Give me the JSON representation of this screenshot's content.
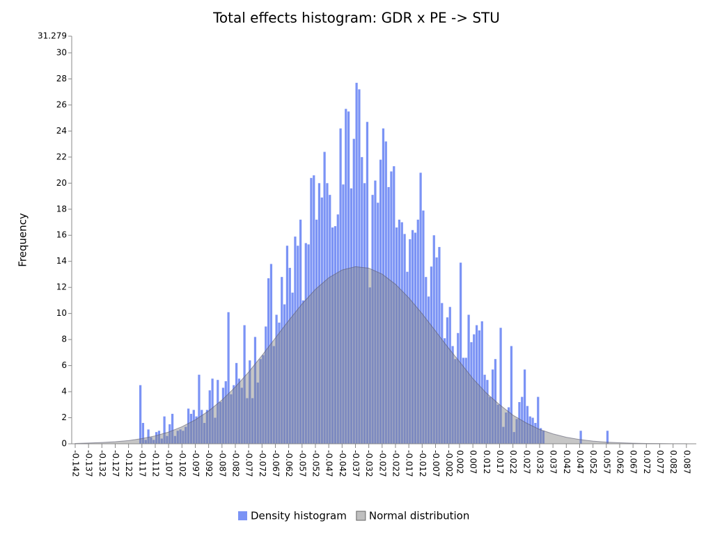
{
  "chart_data": {
    "type": "histogram",
    "title": "Total effects histogram: GDR x PE -> STU",
    "y_label": "Frequency",
    "xlim": [
      -0.1433,
      0.0907
    ],
    "ylim": [
      0,
      31.279
    ],
    "yticks": [
      0,
      2,
      4,
      6,
      8,
      10,
      12,
      14,
      16,
      18,
      20,
      22,
      24,
      26,
      28,
      30,
      31.279
    ],
    "xticks": [
      -0.142,
      -0.137,
      -0.132,
      -0.127,
      -0.122,
      -0.117,
      -0.112,
      -0.107,
      -0.102,
      -0.097,
      -0.092,
      -0.087,
      -0.082,
      -0.077,
      -0.072,
      -0.067,
      -0.062,
      -0.057,
      -0.052,
      -0.047,
      -0.042,
      -0.037,
      -0.032,
      -0.027,
      -0.022,
      -0.017,
      -0.012,
      -0.007,
      -0.002,
      0.002,
      0.007,
      0.012,
      0.017,
      0.022,
      0.027,
      0.032,
      0.037,
      0.042,
      0.047,
      0.052,
      0.057,
      0.062,
      0.067,
      0.072,
      0.077,
      0.082,
      0.087
    ],
    "bins": [
      -0.118,
      -0.117,
      -0.116,
      -0.115,
      -0.114,
      -0.113,
      -0.112,
      -0.111,
      -0.11,
      -0.109,
      -0.108,
      -0.107,
      -0.106,
      -0.105,
      -0.104,
      -0.103,
      -0.102,
      -0.101,
      -0.1,
      -0.099,
      -0.098,
      -0.097,
      -0.096,
      -0.095,
      -0.094,
      -0.093,
      -0.092,
      -0.091,
      -0.09,
      -0.089,
      -0.088,
      -0.087,
      -0.086,
      -0.085,
      -0.084,
      -0.083,
      -0.082,
      -0.081,
      -0.08,
      -0.079,
      -0.078,
      -0.077,
      -0.076,
      -0.075,
      -0.074,
      -0.073,
      -0.072,
      -0.071,
      -0.07,
      -0.069,
      -0.068,
      -0.067,
      -0.066,
      -0.065,
      -0.064,
      -0.063,
      -0.062,
      -0.061,
      -0.06,
      -0.059,
      -0.058,
      -0.057,
      -0.056,
      -0.055,
      -0.054,
      -0.053,
      -0.052,
      -0.051,
      -0.05,
      -0.049,
      -0.048,
      -0.047,
      -0.046,
      -0.045,
      -0.044,
      -0.043,
      -0.042,
      -0.041,
      -0.04,
      -0.039,
      -0.038,
      -0.037,
      -0.036,
      -0.035,
      -0.034,
      -0.033,
      -0.032,
      -0.031,
      -0.03,
      -0.029,
      -0.028,
      -0.027,
      -0.026,
      -0.025,
      -0.024,
      -0.023,
      -0.022,
      -0.021,
      -0.02,
      -0.019,
      -0.018,
      -0.017,
      -0.016,
      -0.015,
      -0.014,
      -0.013,
      -0.012,
      -0.011,
      -0.01,
      -0.009,
      -0.008,
      -0.007,
      -0.006,
      -0.005,
      -0.004,
      -0.003,
      -0.002,
      -0.001,
      0,
      0.001,
      0.002,
      0.003,
      0.004,
      0.005,
      0.006,
      0.007,
      0.008,
      0.009,
      0.01,
      0.011,
      0.012,
      0.013,
      0.014,
      0.015,
      0.016,
      0.017,
      0.018,
      0.019,
      0.02,
      0.021,
      0.022,
      0.023,
      0.024,
      0.025,
      0.026,
      0.027,
      0.028,
      0.029,
      0.03,
      0.031,
      0.032,
      0.033,
      0.034,
      0.035,
      0.036,
      0.037,
      0.038,
      0.039,
      0.04,
      0.041,
      0.042,
      0.043,
      0.044,
      0.045,
      0.046,
      0.047,
      0.048,
      0.049,
      0.05,
      0.051,
      0.052,
      0.053,
      0.054,
      0.055,
      0.056,
      0.057,
      0.058,
      0.059
    ],
    "series": [
      {
        "name": "Density histogram",
        "color": "#7b93f5",
        "values": [
          4.5,
          1.6,
          0.3,
          1.1,
          0.5,
          0.3,
          0.9,
          1.0,
          0.4,
          2.1,
          0.6,
          1.5,
          2.3,
          0.6,
          1.0,
          1.1,
          1.0,
          1.3,
          2.7,
          2.3,
          2.6,
          2.1,
          5.3,
          2.6,
          1.6,
          2.6,
          4.1,
          5.0,
          2.0,
          4.9,
          3.2,
          4.3,
          4.8,
          10.1,
          3.8,
          4.5,
          6.2,
          5.0,
          4.3,
          9.1,
          3.5,
          6.4,
          3.5,
          8.2,
          4.7,
          6.5,
          6.8,
          9.0,
          12.7,
          13.8,
          7.5,
          9.9,
          9.3,
          12.8,
          10.7,
          15.2,
          13.5,
          11.6,
          15.9,
          15.2,
          17.2,
          11.0,
          15.4,
          15.3,
          20.4,
          20.6,
          17.2,
          20.0,
          18.9,
          22.4,
          20.0,
          19.1,
          16.6,
          16.7,
          17.6,
          24.2,
          19.9,
          25.7,
          25.5,
          19.6,
          23.4,
          27.7,
          27.2,
          22.0,
          20.0,
          24.7,
          12.0,
          19.1,
          20.2,
          18.5,
          21.8,
          24.2,
          23.2,
          19.7,
          20.9,
          21.3,
          16.6,
          17.2,
          17.0,
          16.1,
          13.2,
          15.7,
          16.4,
          16.2,
          17.2,
          20.8,
          17.9,
          12.8,
          11.3,
          13.6,
          16.0,
          14.3,
          15.1,
          10.8,
          8.1,
          9.7,
          10.5,
          7.5,
          6.5,
          8.5,
          13.9,
          6.6,
          6.6,
          9.9,
          7.8,
          8.4,
          9.1,
          8.7,
          9.4,
          5.3,
          4.9,
          3.6,
          5.7,
          6.5,
          3.0,
          8.9,
          1.3,
          2.4,
          2.8,
          7.5,
          0.9,
          1.9,
          3.2,
          3.6,
          5.7,
          2.9,
          2.1,
          2.0,
          1.6,
          3.6,
          1.2,
          1.0,
          0,
          0,
          0,
          0,
          0,
          0,
          0,
          0,
          0,
          0,
          0,
          0,
          0,
          1.0,
          0,
          0,
          0,
          0,
          0,
          0,
          0,
          0,
          0,
          1.0,
          0
        ]
      },
      {
        "name": "Normal distribution",
        "type": "area",
        "color": "#808080",
        "x": [
          -0.142,
          -0.137,
          -0.132,
          -0.127,
          -0.122,
          -0.117,
          -0.112,
          -0.107,
          -0.102,
          -0.097,
          -0.092,
          -0.087,
          -0.082,
          -0.077,
          -0.072,
          -0.067,
          -0.062,
          -0.057,
          -0.052,
          -0.047,
          -0.042,
          -0.037,
          -0.032,
          -0.027,
          -0.022,
          -0.017,
          -0.012,
          -0.007,
          -0.002,
          0.002,
          0.007,
          0.012,
          0.017,
          0.022,
          0.027,
          0.032,
          0.037,
          0.042,
          0.047,
          0.052,
          0.057,
          0.062,
          0.067,
          0.072,
          0.077,
          0.082,
          0.087
        ],
        "values": [
          0.03,
          0.06,
          0.1,
          0.16,
          0.25,
          0.4,
          0.61,
          0.9,
          1.31,
          1.84,
          2.52,
          3.36,
          4.36,
          5.51,
          6.78,
          8.12,
          9.46,
          10.73,
          11.85,
          12.74,
          13.34,
          13.59,
          13.48,
          13.02,
          12.24,
          11.2,
          9.98,
          8.65,
          7.31,
          6.3,
          5.0,
          3.9,
          3.0,
          2.2,
          1.6,
          1.1,
          0.76,
          0.5,
          0.33,
          0.21,
          0.13,
          0.08,
          0.05,
          0.03,
          0.02,
          0.01,
          0.01
        ]
      }
    ],
    "legend": "bottom"
  }
}
